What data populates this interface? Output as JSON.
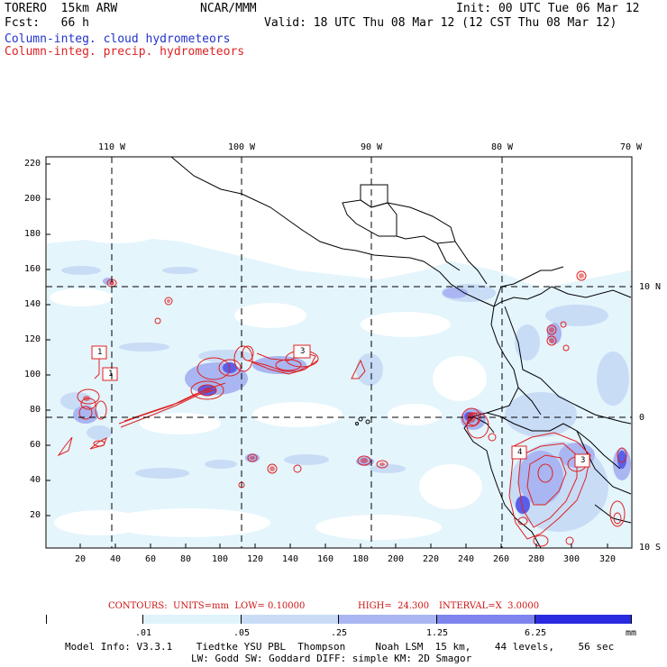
{
  "header": {
    "model": "TORERO  15km ARW",
    "org": "NCAR/MMM",
    "init": "Init: 00 UTC Tue 06 Mar 12",
    "fcst": "Fcst:   66 h",
    "valid": "Valid: 18 UTC Thu 08 Mar 12 (12 CST Thu 08 Mar 12)",
    "field1": "Column-integ. cloud hydrometeors",
    "field2": "Column-integ. precip. hydrometeors"
  },
  "colors": {
    "field1": "#2233cc",
    "field2": "#dd2222",
    "shade1": "#dff3fb",
    "shade2": "#c8dcf6",
    "shade3": "#a9b6f2",
    "shade4": "#7d84ee",
    "shade5": "#5a5ee8",
    "shade6": "#2a2ae0"
  },
  "map": {
    "lon_labels_top": [
      "110 W",
      "100 W",
      "90 W",
      "80 W",
      "70 W"
    ],
    "lat_labels_right": [
      "10 N",
      "0",
      "10 S"
    ],
    "x_ticks": [
      "20",
      "40",
      "60",
      "80",
      "100",
      "120",
      "140",
      "160",
      "180",
      "200",
      "220",
      "240",
      "260",
      "280",
      "300",
      "320"
    ],
    "y_ticks": [
      "220",
      "200",
      "180",
      "160",
      "140",
      "120",
      "100",
      "80",
      "60",
      "40",
      "20"
    ],
    "box_labels": [
      "1",
      "1",
      "3",
      "4",
      "3"
    ]
  },
  "contours": {
    "units": "CONTOURS:  UNITS=mm  LOW= 0.10000",
    "high": "HIGH=  24.300",
    "interval": "INTERVAL=X  3.0000"
  },
  "colorbar": {
    "labels": [
      ".01",
      ".05",
      ".25",
      "1.25",
      "6.25"
    ],
    "unit": "mm"
  },
  "footer": {
    "line1": "Model Info: V3.3.1    Tiedtke YSU PBL  Thompson     Noah LSM  15 km,    44 levels,    56 sec",
    "line2": "LW: Godd SW: Goddard DIFF: simple KM: 2D Smagor"
  }
}
